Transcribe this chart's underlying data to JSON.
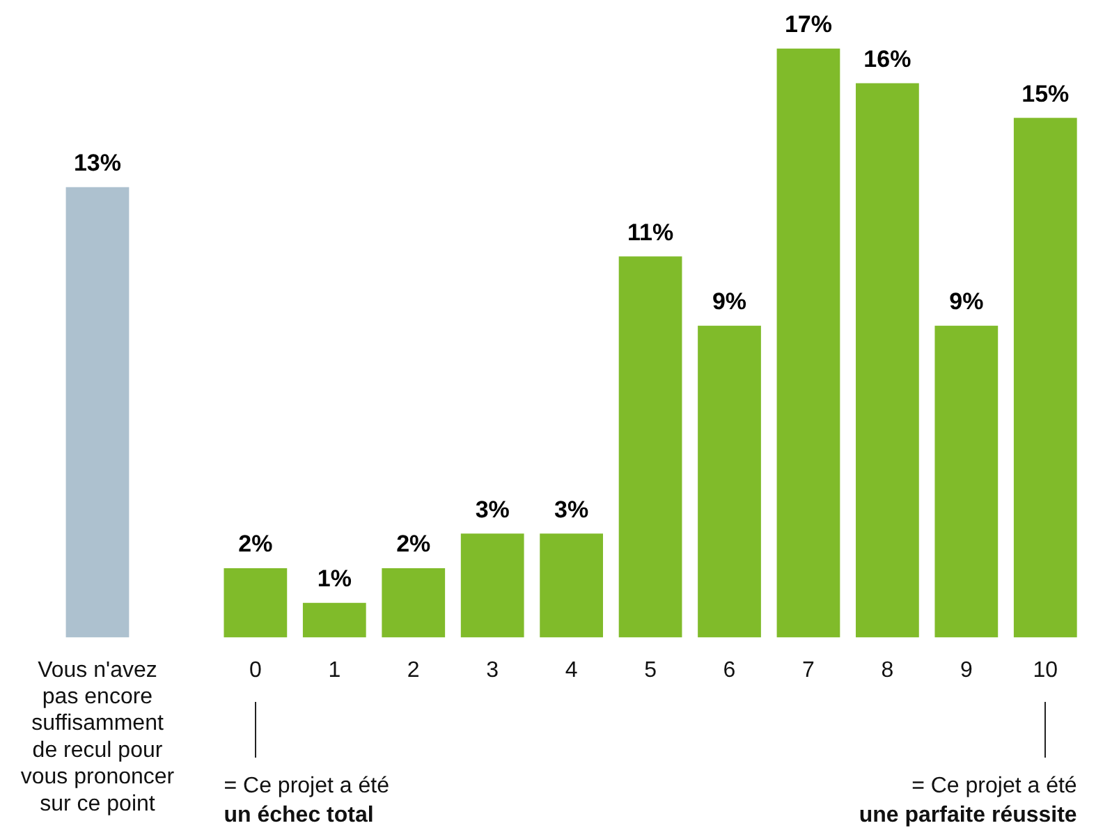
{
  "chart_data": {
    "type": "bar",
    "categories": [
      "Vous n'avez pas encore suffisamment de recul pour vous prononcer sur ce point",
      null,
      "0",
      "1",
      "2",
      "3",
      "4",
      "5",
      "6",
      "7",
      "8",
      "9",
      "10"
    ],
    "values": [
      13,
      null,
      2,
      1,
      2,
      3,
      3,
      11,
      9,
      17,
      16,
      9,
      15
    ],
    "colors": [
      "#adc1cf",
      null,
      "#80bb2a",
      "#80bb2a",
      "#80bb2a",
      "#80bb2a",
      "#80bb2a",
      "#80bb2a",
      "#80bb2a",
      "#80bb2a",
      "#80bb2a",
      "#80bb2a",
      "#80bb2a"
    ],
    "value_labels": [
      "13%",
      null,
      "2%",
      "1%",
      "2%",
      "3%",
      "3%",
      "11%",
      "9%",
      "17%",
      "16%",
      "9%",
      "15%"
    ],
    "annotations": [
      "= Ce projet a été\nun échec total",
      "= Ce projet a été\nune parfaite réussite"
    ],
    "grid": false,
    "legend": false
  }
}
